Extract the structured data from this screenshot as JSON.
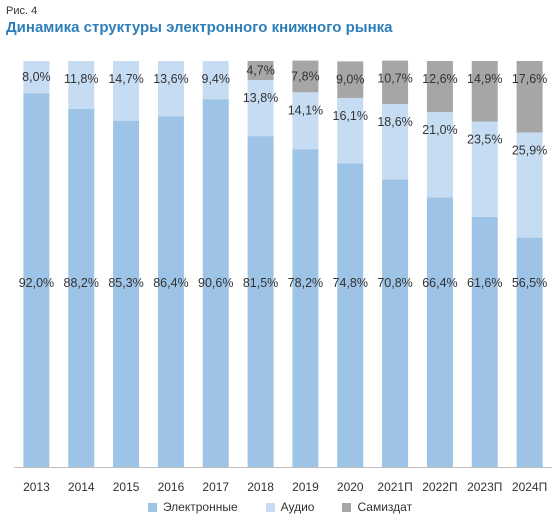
{
  "figure_label": "Рис. 4",
  "colors": {
    "electronic": "#9dc3e6",
    "audio": "#c6dcf2",
    "samizdat": "#a6a6a6"
  },
  "chart_data": {
    "type": "bar",
    "stacked": true,
    "title": "Динамика структуры электронного книжного рынка",
    "xlabel": "",
    "ylabel": "",
    "ylim": [
      0,
      100
    ],
    "grid": false,
    "legend_position": "bottom",
    "categories": [
      "2013",
      "2014",
      "2015",
      "2016",
      "2017",
      "2018",
      "2019",
      "2020",
      "2021П",
      "2022П",
      "2023П",
      "2024П"
    ],
    "series": [
      {
        "name": "Электронные",
        "color": "#9dc3e6",
        "values": [
          92.0,
          88.2,
          85.3,
          86.4,
          90.6,
          81.5,
          78.2,
          74.8,
          70.8,
          66.4,
          61.6,
          56.5
        ],
        "labels": [
          "92,0%",
          "88,2%",
          "85,3%",
          "86,4%",
          "90,6%",
          "81,5%",
          "78,2%",
          "74,8%",
          "70,8%",
          "66,4%",
          "61,6%",
          "56,5%"
        ]
      },
      {
        "name": "Аудио",
        "color": "#c6dcf2",
        "values": [
          8.0,
          11.8,
          14.7,
          13.6,
          9.4,
          13.8,
          14.1,
          16.1,
          18.6,
          21.0,
          23.5,
          25.9
        ],
        "labels": [
          "8,0%",
          "11,8%",
          "14,7%",
          "13,6%",
          "9,4%",
          "13,8%",
          "14,1%",
          "16,1%",
          "18,6%",
          "21,0%",
          "23,5%",
          "25,9%"
        ]
      },
      {
        "name": "Самиздат",
        "color": "#a6a6a6",
        "values": [
          0,
          0,
          0,
          0,
          0,
          4.7,
          7.8,
          9.0,
          10.7,
          12.6,
          14.9,
          17.6
        ],
        "labels": [
          "",
          "",
          "",
          "",
          "",
          "4,7%",
          "7,8%",
          "9,0%",
          "10,7%",
          "12,6%",
          "14,9%",
          "17,6%"
        ]
      }
    ]
  }
}
